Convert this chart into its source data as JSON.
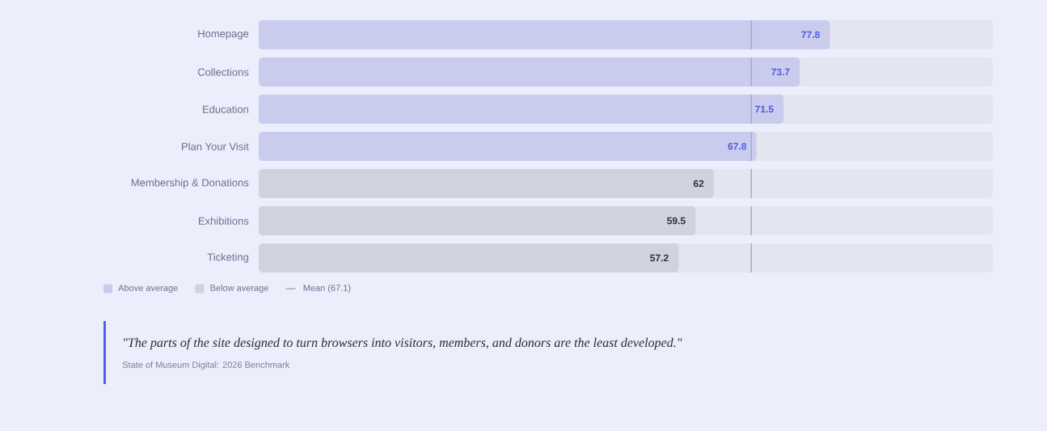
{
  "chart_data": {
    "type": "bar",
    "orientation": "horizontal",
    "categories": [
      "Homepage",
      "Collections",
      "Education",
      "Plan Your Visit",
      "Membership & Donations",
      "Exhibitions",
      "Ticketing"
    ],
    "series": [
      {
        "name": "Above average",
        "color": "#caccee",
        "values": [
          77.8,
          73.7,
          71.5,
          67.8,
          null,
          null,
          null
        ]
      },
      {
        "name": "Below average",
        "color": "#d0d2dd",
        "values": [
          null,
          null,
          null,
          null,
          62,
          59.5,
          57.2
        ]
      }
    ],
    "xlim": [
      0,
      100
    ],
    "data_labels": true,
    "tick_labels": "y",
    "legend": "bottom left",
    "ref_lines": [
      {
        "axis": "x",
        "value": 67.1,
        "label": "Mean (67.1)",
        "color": "#a8aac4"
      }
    ],
    "annotations": [
      "\"The parts of the site designed to turn browsers into visitors, members, and donors are the least developed.\"",
      "State of Museum Digital: 2026 Benchmark"
    ]
  }
}
